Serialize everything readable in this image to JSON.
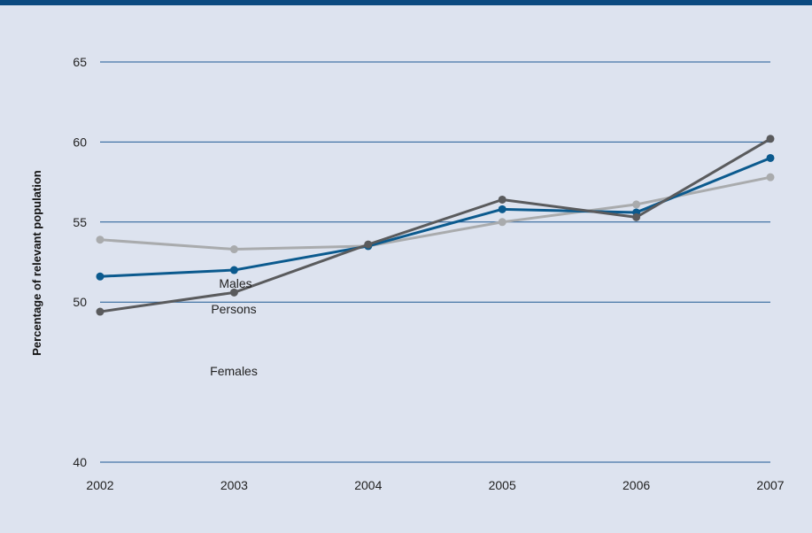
{
  "chart_data": {
    "type": "line",
    "title": "",
    "xlabel": "",
    "ylabel": "Percentage of relevant population",
    "ylim": [
      40,
      65
    ],
    "y_ticks": [
      "40",
      "45",
      "50",
      "55",
      "60",
      "65"
    ],
    "y_tick_labels": [
      "40",
      "",
      "50",
      "55",
      "60",
      "65"
    ],
    "x": [
      "2002",
      "2003",
      "2004",
      "2005",
      "2006",
      "2007"
    ],
    "grid": true,
    "series": [
      {
        "name": "Males",
        "color": "#a9abad",
        "values": [
          53.9,
          53.3,
          53.5,
          55.0,
          56.1,
          57.8
        ]
      },
      {
        "name": "Persons",
        "color": "#0b5a8e",
        "values": [
          51.6,
          52.0,
          53.5,
          55.8,
          55.6,
          59.0
        ]
      },
      {
        "name": "Females",
        "color": "#5a5b5d",
        "values": [
          49.4,
          50.6,
          53.6,
          56.4,
          55.3,
          60.2
        ]
      }
    ],
    "annotations": {
      "males": "Males",
      "persons": "Persons",
      "females": "Females"
    }
  }
}
